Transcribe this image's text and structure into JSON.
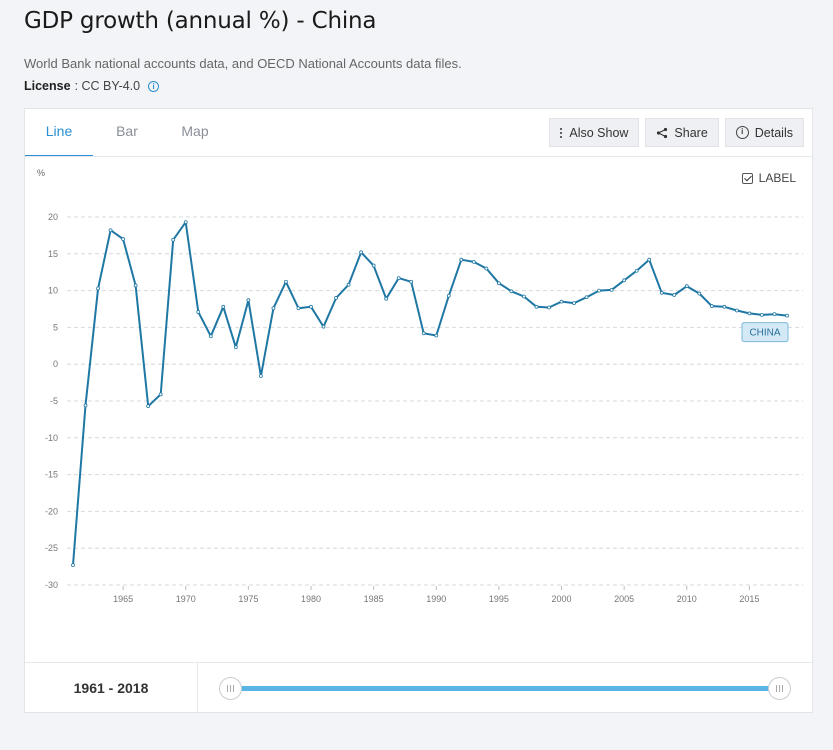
{
  "page": {
    "title": "GDP growth (annual %) - China",
    "source": "World Bank national accounts data, and OECD National Accounts data files.",
    "license_label": "License",
    "license_value": ": CC BY-4.0"
  },
  "tabs": [
    {
      "label": "Line",
      "active": true
    },
    {
      "label": "Bar",
      "active": false
    },
    {
      "label": "Map",
      "active": false
    }
  ],
  "actions": {
    "also_show": "Also Show",
    "share": "Share",
    "details": "Details"
  },
  "label_toggle": {
    "text": "LABEL",
    "checked": true
  },
  "range": {
    "text": "1961 - 2018",
    "start": 1961,
    "end": 2018
  },
  "colors": {
    "line": "#1f77a4",
    "accent": "#2a8fd4",
    "slider": "#5ab4e6"
  },
  "chart_data": {
    "type": "line",
    "ylabel": "%",
    "ylim": [
      -30,
      20
    ],
    "yticks": [
      20,
      15,
      10,
      5,
      0,
      -5,
      -10,
      -15,
      -20,
      -25,
      -30
    ],
    "xticks": [
      1965,
      1970,
      1975,
      1980,
      1985,
      1990,
      1995,
      2000,
      2005,
      2010,
      2015
    ],
    "xlim": [
      1961,
      2018
    ],
    "grid": true,
    "series": [
      {
        "name": "CHINA",
        "x": [
          1961,
          1962,
          1963,
          1964,
          1965,
          1966,
          1967,
          1968,
          1969,
          1970,
          1971,
          1972,
          1973,
          1974,
          1975,
          1976,
          1977,
          1978,
          1979,
          1980,
          1981,
          1982,
          1983,
          1984,
          1985,
          1986,
          1987,
          1988,
          1989,
          1990,
          1991,
          1992,
          1993,
          1994,
          1995,
          1996,
          1997,
          1998,
          1999,
          2000,
          2001,
          2002,
          2003,
          2004,
          2005,
          2006,
          2007,
          2008,
          2009,
          2010,
          2011,
          2012,
          2013,
          2014,
          2015,
          2016,
          2017,
          2018
        ],
        "values": [
          -27.3,
          -5.6,
          10.3,
          18.2,
          17.0,
          10.7,
          -5.7,
          -4.1,
          16.9,
          19.3,
          7.1,
          3.8,
          7.8,
          2.3,
          8.7,
          -1.6,
          7.6,
          11.2,
          7.6,
          7.8,
          5.1,
          9.0,
          10.8,
          15.2,
          13.4,
          8.9,
          11.7,
          11.2,
          4.2,
          3.9,
          9.3,
          14.2,
          13.9,
          13.0,
          11.0,
          9.9,
          9.2,
          7.8,
          7.7,
          8.5,
          8.3,
          9.1,
          10.0,
          10.1,
          11.4,
          12.7,
          14.2,
          9.7,
          9.4,
          10.6,
          9.6,
          7.9,
          7.8,
          7.3,
          6.9,
          6.7,
          6.8,
          6.6
        ]
      }
    ]
  }
}
